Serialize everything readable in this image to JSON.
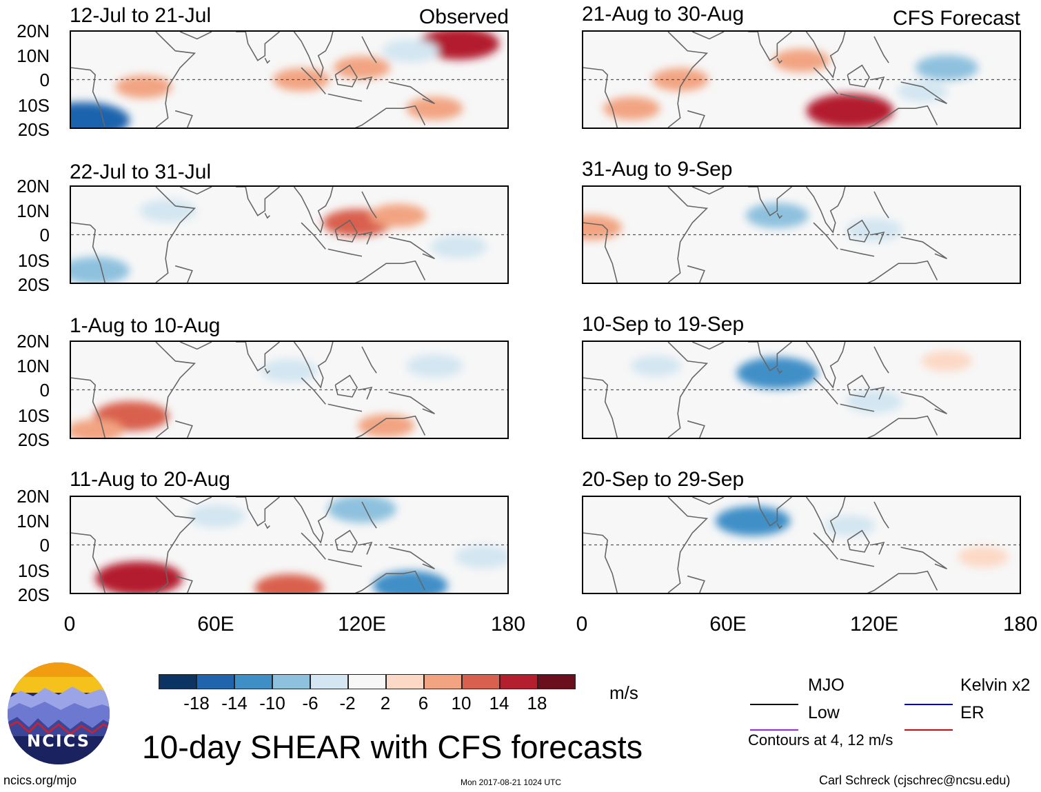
{
  "title": "10-day SHEAR with CFS forecasts",
  "units": "m/s",
  "observed_label": "Observed",
  "forecast_label": "CFS Forecast",
  "footer": {
    "url": "ncics.org/mjo",
    "timestamp": "Mon 2017-08-21 1024 UTC",
    "credit": "Carl Schreck (cjschrec@ncsu.edu)"
  },
  "logo_text": "NCICS",
  "colorbar": {
    "colors": [
      "#0b3463",
      "#1f64ad",
      "#3f8fc7",
      "#8ec1de",
      "#d3e6f1",
      "#f7f7f7",
      "#fcd9c6",
      "#f2a482",
      "#d9604e",
      "#b31f2d",
      "#6b0f1f"
    ],
    "ticks": [
      "-18",
      "-14",
      "-10",
      "-6",
      "-2",
      "2",
      "6",
      "10",
      "14",
      "18"
    ]
  },
  "legend": {
    "items": [
      {
        "label": "MJO",
        "color": "#000000"
      },
      {
        "label": "Kelvin x2",
        "color": "#0000dd"
      },
      {
        "label": "Low",
        "color": "#a020f0"
      },
      {
        "label": "ER",
        "color": "#dd0000"
      }
    ],
    "note": "Contours at 4, 12 m/s"
  },
  "chart_data": {
    "type": "heatmap",
    "variable": "10-day vertical wind shear anomaly",
    "units": "m/s",
    "lat_ticks": [
      "20N",
      "10N",
      "0",
      "10S",
      "20S"
    ],
    "lon_ticks": [
      "0",
      "60E",
      "120E",
      "180"
    ],
    "lat_range": [
      -20,
      20
    ],
    "lon_range": [
      0,
      180
    ],
    "panels": [
      {
        "period": "12-Jul to 21-Jul",
        "kind": "observed",
        "blobs": [
          {
            "lon": 160,
            "lat": 15,
            "v": 14
          },
          {
            "lon": 120,
            "lat": 5,
            "v": 6
          },
          {
            "lon": 95,
            "lat": 0,
            "v": 6
          },
          {
            "lon": 30,
            "lat": -3,
            "v": 6
          },
          {
            "lon": 5,
            "lat": -17,
            "v": -18
          },
          {
            "lon": 140,
            "lat": 12,
            "v": -6
          },
          {
            "lon": 70,
            "lat": 12,
            "v": -2
          },
          {
            "lon": 150,
            "lat": -12,
            "v": 6
          }
        ]
      },
      {
        "period": "22-Jul to 31-Jul",
        "kind": "observed",
        "blobs": [
          {
            "lon": 118,
            "lat": 5,
            "v": 10
          },
          {
            "lon": 135,
            "lat": 8,
            "v": 6
          },
          {
            "lon": 10,
            "lat": -15,
            "v": -10
          },
          {
            "lon": 70,
            "lat": -8,
            "v": -2
          },
          {
            "lon": 160,
            "lat": -5,
            "v": -6
          },
          {
            "lon": 40,
            "lat": 10,
            "v": -6
          }
        ]
      },
      {
        "period": "1-Aug to 10-Aug",
        "kind": "observed",
        "blobs": [
          {
            "lon": 25,
            "lat": -11,
            "v": 12
          },
          {
            "lon": 10,
            "lat": -17,
            "v": 6
          },
          {
            "lon": 130,
            "lat": -15,
            "v": 6
          },
          {
            "lon": 90,
            "lat": 8,
            "v": -6
          },
          {
            "lon": 150,
            "lat": 10,
            "v": -6
          },
          {
            "lon": 60,
            "lat": -5,
            "v": -2
          }
        ]
      },
      {
        "period": "11-Aug to 20-Aug",
        "kind": "observed",
        "blobs": [
          {
            "lon": 28,
            "lat": -14,
            "v": 16
          },
          {
            "lon": 90,
            "lat": -18,
            "v": 10
          },
          {
            "lon": 140,
            "lat": -17,
            "v": -12
          },
          {
            "lon": 120,
            "lat": 15,
            "v": -10
          },
          {
            "lon": 60,
            "lat": 12,
            "v": -6
          },
          {
            "lon": 170,
            "lat": -5,
            "v": -6
          }
        ]
      },
      {
        "period": "21-Aug to 30-Aug",
        "kind": "forecast",
        "blobs": [
          {
            "lon": 110,
            "lat": -13,
            "v": 16
          },
          {
            "lon": 90,
            "lat": 8,
            "v": 6
          },
          {
            "lon": 40,
            "lat": 0,
            "v": 6
          },
          {
            "lon": 150,
            "lat": 5,
            "v": -8
          },
          {
            "lon": 20,
            "lat": -12,
            "v": 6
          },
          {
            "lon": 140,
            "lat": -5,
            "v": -4
          }
        ]
      },
      {
        "period": "31-Aug to 9-Sep",
        "kind": "forecast",
        "blobs": [
          {
            "lon": 80,
            "lat": 8,
            "v": -8
          },
          {
            "lon": 120,
            "lat": 2,
            "v": -6
          },
          {
            "lon": 3,
            "lat": 3,
            "v": 8
          },
          {
            "lon": 50,
            "lat": -8,
            "v": -2
          },
          {
            "lon": 160,
            "lat": -10,
            "v": -2
          }
        ]
      },
      {
        "period": "10-Sep to 19-Sep",
        "kind": "forecast",
        "blobs": [
          {
            "lon": 80,
            "lat": 7,
            "v": -14
          },
          {
            "lon": 120,
            "lat": -5,
            "v": -6
          },
          {
            "lon": 30,
            "lat": 10,
            "v": -4
          },
          {
            "lon": 150,
            "lat": 12,
            "v": 4
          }
        ]
      },
      {
        "period": "20-Sep to 29-Sep",
        "kind": "forecast",
        "blobs": [
          {
            "lon": 70,
            "lat": 10,
            "v": -12
          },
          {
            "lon": 110,
            "lat": 8,
            "v": -4
          },
          {
            "lon": 165,
            "lat": -5,
            "v": 4
          },
          {
            "lon": 40,
            "lat": -8,
            "v": -2
          }
        ]
      }
    ]
  }
}
